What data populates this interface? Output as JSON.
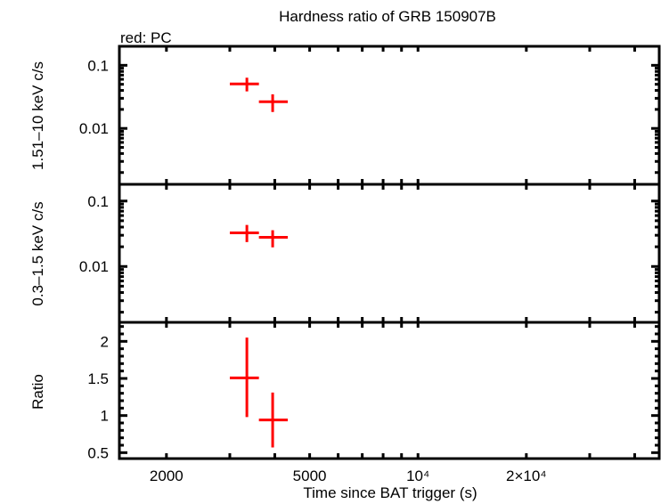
{
  "chart_data": {
    "type": "scatter",
    "title": "Hardness ratio of GRB 150907B",
    "legend_note": "red: PC",
    "xlabel": "Time since BAT trigger (s)",
    "xscale": "log",
    "xlim": [
      1480,
      46800
    ],
    "x_tick_labels": [
      {
        "value": 2000,
        "label": "2000"
      },
      {
        "value": 5000,
        "label": "5000"
      },
      {
        "value": 10000,
        "label": "10⁴"
      },
      {
        "value": 20000,
        "label": "2×10⁴"
      }
    ],
    "series_color": "#ff0000",
    "panels": [
      {
        "ylabel": "1.51–10 keV c/s",
        "yscale": "log",
        "ylim": [
          0.0013,
          0.2
        ],
        "y_tick_labels": [
          {
            "value": 0.1,
            "label": "0.1"
          },
          {
            "value": 0.01,
            "label": "0.01"
          }
        ],
        "points": [
          {
            "x": 3346,
            "xlo": 3000,
            "xhi": 3614,
            "y": 0.0506,
            "ylo": 0.0386,
            "yhi": 0.0636
          },
          {
            "x": 3946,
            "xlo": 3614,
            "xhi": 4347,
            "y": 0.0265,
            "ylo": 0.0182,
            "yhi": 0.0347
          }
        ]
      },
      {
        "ylabel": "0.3–1.5 keV c/s",
        "yscale": "log",
        "ylim": [
          0.0014,
          0.18
        ],
        "y_tick_labels": [
          {
            "value": 0.1,
            "label": "0.1"
          },
          {
            "value": 0.01,
            "label": "0.01"
          }
        ],
        "points": [
          {
            "x": 3346,
            "xlo": 3000,
            "xhi": 3614,
            "y": 0.0326,
            "ylo": 0.0236,
            "yhi": 0.0431
          },
          {
            "x": 3946,
            "xlo": 3614,
            "xhi": 4347,
            "y": 0.0279,
            "ylo": 0.0196,
            "yhi": 0.0358
          }
        ]
      },
      {
        "ylabel": "Ratio",
        "yscale": "linear",
        "ylim": [
          0.42,
          2.256
        ],
        "y_tick_labels": [
          {
            "value": 2,
            "label": "2"
          },
          {
            "value": 1.5,
            "label": "1.5"
          },
          {
            "value": 1,
            "label": "1"
          },
          {
            "value": 0.5,
            "label": "0.5"
          }
        ],
        "points": [
          {
            "x": 3346,
            "xlo": 3000,
            "xhi": 3614,
            "y": 1.508,
            "ylo": 0.98,
            "yhi": 2.05
          },
          {
            "x": 3946,
            "xlo": 3614,
            "xhi": 4347,
            "y": 0.94,
            "ylo": 0.57,
            "yhi": 1.31
          }
        ]
      }
    ]
  }
}
